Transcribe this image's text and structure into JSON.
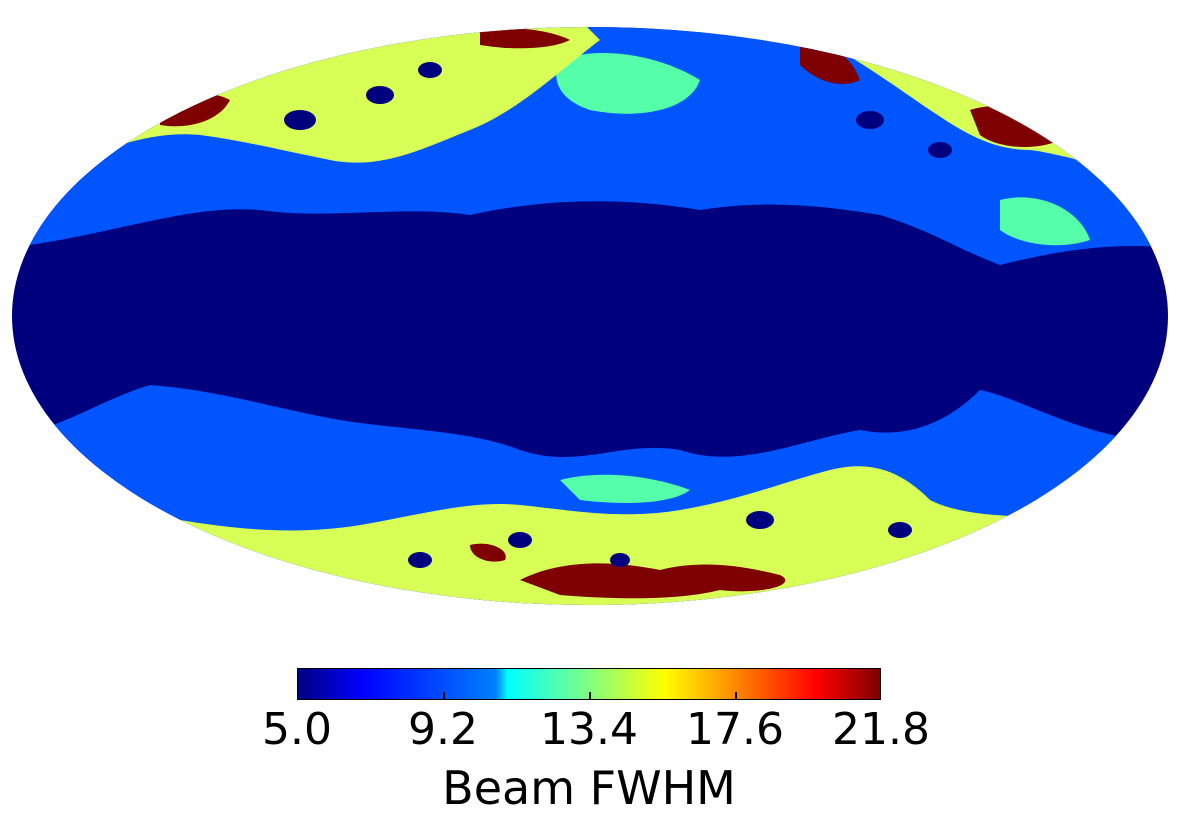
{
  "chart_data": {
    "type": "heatmap",
    "projection": "mollweide",
    "colormap": "jet",
    "colorbar": {
      "min": 5.0,
      "max": 21.8,
      "ticks": [
        "5.0",
        "9.2",
        "13.4",
        "17.6",
        "21.8"
      ],
      "label": "Beam FWHM",
      "orientation": "horizontal"
    },
    "levels": [
      5.0,
      9.2,
      13.4,
      17.6,
      21.8
    ],
    "level_colors": [
      "#00007f",
      "#0055ff",
      "#55ffaa",
      "#d7ff56",
      "#7f0000"
    ]
  }
}
